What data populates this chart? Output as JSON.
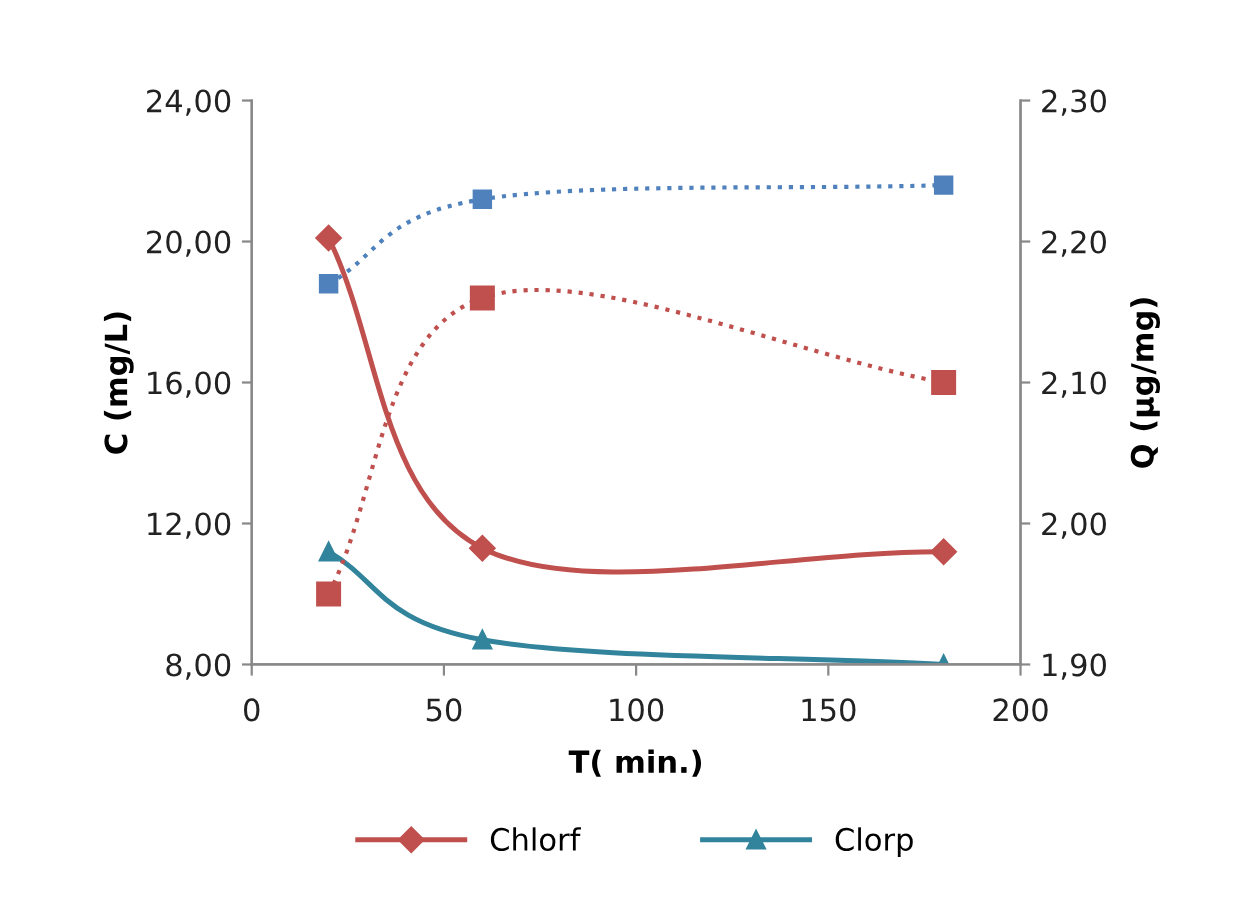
{
  "chart_data": {
    "type": "line",
    "xlabel": "T( min.)",
    "ylabel": "C (mg/L)",
    "y2label": "Q (µg/mg)",
    "x": [
      20,
      60,
      180
    ],
    "series": [
      {
        "name": "Chlorf",
        "color": "#c0504d",
        "values": [
          20.1,
          11.3,
          11.2
        ],
        "marker": "diamond",
        "line_style": "solid"
      },
      {
        "name": "Clorp",
        "color": "#31849b",
        "values": [
          11.2,
          8.7,
          8.0
        ],
        "marker": "triangle",
        "line_style": "solid"
      },
      {
        "color": "#c0504d",
        "values": [
          1.95,
          2.16,
          2.1
        ],
        "axis": "y2",
        "marker": "square",
        "line_style": "dotted"
      },
      {
        "color": "#4f81bd",
        "values": [
          2.17,
          2.23,
          2.24
        ],
        "axis": "y2",
        "marker": "square",
        "line_style": "dotted"
      }
    ],
    "xlim": [
      0,
      200
    ],
    "xticks": [
      0,
      50,
      100,
      150,
      200
    ],
    "ylim": [
      8,
      24
    ],
    "yticks": [
      {
        "value": 8,
        "label": "8,00"
      },
      {
        "value": 12,
        "label": "12,00"
      },
      {
        "value": 16,
        "label": "16,00"
      },
      {
        "value": 20,
        "label": "20,00"
      },
      {
        "value": 24,
        "label": "24,00"
      }
    ],
    "y2lim": [
      1.9,
      2.3
    ],
    "y2ticks": [
      {
        "value": 1.9,
        "label": "1,90"
      },
      {
        "value": 2.0,
        "label": "2,00"
      },
      {
        "value": 2.1,
        "label": "2,10"
      },
      {
        "value": 2.2,
        "label": "2,20"
      },
      {
        "value": 2.3,
        "label": "2,30"
      }
    ],
    "grid": false,
    "legend": "bottom"
  }
}
